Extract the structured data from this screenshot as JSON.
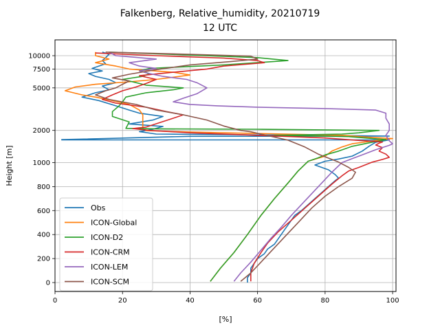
{
  "chart_data": {
    "type": "line",
    "title": "Falkenberg, Relative_humidity, 20210719",
    "subtitle": "12 UTC",
    "xlabel": "[%]",
    "ylabel": "Height [m]",
    "xlim": [
      0,
      101
    ],
    "x_ticks": [
      "0",
      "20",
      "40",
      "60",
      "80",
      "100"
    ],
    "x_tick_values": [
      0,
      20,
      40,
      60,
      80,
      100
    ],
    "y_ticks": [
      "0",
      "200",
      "400",
      "600",
      "800",
      "1000",
      "2000",
      "5000",
      "7500",
      "10000"
    ],
    "y_tick_values": [
      0,
      200,
      400,
      600,
      800,
      1000,
      2000,
      5000,
      7500,
      10000
    ],
    "grid": true,
    "legend_position": "lower-left",
    "series": [
      {
        "name": "Obs",
        "color": "#1f77b4",
        "points": [
          [
            57,
            0
          ],
          [
            57,
            40
          ],
          [
            58,
            80
          ],
          [
            58,
            120
          ],
          [
            59,
            160
          ],
          [
            60,
            200
          ],
          [
            62,
            240
          ],
          [
            63,
            280
          ],
          [
            65,
            320
          ],
          [
            66,
            360
          ],
          [
            67,
            400
          ],
          [
            68,
            440
          ],
          [
            69,
            480
          ],
          [
            70,
            520
          ],
          [
            71,
            560
          ],
          [
            73,
            600
          ],
          [
            75,
            650
          ],
          [
            77,
            700
          ],
          [
            79,
            750
          ],
          [
            81,
            800
          ],
          [
            83,
            850
          ],
          [
            84,
            870
          ],
          [
            83,
            900
          ],
          [
            81,
            940
          ],
          [
            77,
            980
          ],
          [
            80,
            1030
          ],
          [
            84,
            1080
          ],
          [
            88,
            1150
          ],
          [
            91,
            1280
          ],
          [
            93,
            1420
          ],
          [
            95,
            1550
          ],
          [
            99,
            1630
          ],
          [
            2,
            1630
          ],
          [
            2,
            1640
          ],
          [
            40,
            1760
          ],
          [
            99,
            1770
          ],
          [
            30,
            1850
          ],
          [
            25,
            1950
          ],
          [
            29,
            2050
          ],
          [
            32,
            2180
          ],
          [
            22,
            2300
          ],
          [
            29,
            2500
          ],
          [
            32,
            2700
          ],
          [
            25,
            2900
          ],
          [
            22,
            3100
          ],
          [
            18,
            3400
          ],
          [
            13,
            3800
          ],
          [
            8,
            4100
          ],
          [
            12,
            4500
          ],
          [
            16,
            4800
          ],
          [
            14,
            5200
          ],
          [
            18,
            5600
          ],
          [
            16,
            6000
          ],
          [
            12,
            6400
          ],
          [
            10,
            6800
          ],
          [
            14,
            7200
          ],
          [
            11,
            7600
          ],
          [
            13,
            8000
          ],
          [
            15,
            8400
          ],
          [
            14,
            9000
          ],
          [
            15,
            9600
          ],
          [
            16,
            10300
          ],
          [
            14,
            10800
          ]
        ]
      },
      {
        "name": "ICON-Global",
        "color": "#ff7f0e",
        "points": [
          [
            46,
            10
          ],
          [
            49,
            120
          ],
          [
            53,
            250
          ],
          [
            57,
            400
          ],
          [
            61,
            560
          ],
          [
            65,
            700
          ],
          [
            69,
            830
          ],
          [
            72,
            930
          ],
          [
            75,
            1030
          ],
          [
            80,
            1150
          ],
          [
            82,
            1280
          ],
          [
            85,
            1400
          ],
          [
            88,
            1500
          ],
          [
            92,
            1560
          ],
          [
            96,
            1620
          ],
          [
            100,
            1680
          ],
          [
            94,
            1720
          ],
          [
            85,
            1800
          ],
          [
            60,
            1870
          ],
          [
            40,
            1930
          ],
          [
            27,
            1990
          ],
          [
            26,
            2100
          ],
          [
            26,
            2400
          ],
          [
            26,
            2800
          ],
          [
            25,
            3100
          ],
          [
            22,
            3500
          ],
          [
            17,
            3800
          ],
          [
            12,
            4100
          ],
          [
            8,
            4300
          ],
          [
            3,
            4700
          ],
          [
            6,
            5100
          ],
          [
            12,
            5400
          ],
          [
            22,
            5700
          ],
          [
            30,
            6000
          ],
          [
            40,
            6600
          ],
          [
            35,
            7000
          ],
          [
            22,
            7500
          ],
          [
            18,
            8000
          ],
          [
            12,
            8600
          ],
          [
            16,
            9300
          ],
          [
            12,
            10000
          ],
          [
            12,
            10800
          ]
        ]
      },
      {
        "name": "ICON-D2",
        "color": "#2ca02c",
        "points": [
          [
            46,
            10
          ],
          [
            49,
            120
          ],
          [
            53,
            250
          ],
          [
            57,
            400
          ],
          [
            61,
            560
          ],
          [
            65,
            700
          ],
          [
            69,
            830
          ],
          [
            72,
            930
          ],
          [
            75,
            1030
          ],
          [
            78,
            1110
          ],
          [
            80,
            1180
          ],
          [
            84,
            1280
          ],
          [
            88,
            1420
          ],
          [
            93,
            1530
          ],
          [
            98,
            1640
          ],
          [
            87,
            1750
          ],
          [
            65,
            1800
          ],
          [
            85,
            1850
          ],
          [
            90,
            1900
          ],
          [
            93,
            1950
          ],
          [
            96,
            2000
          ],
          [
            60,
            2050
          ],
          [
            30,
            2070
          ],
          [
            21,
            2090
          ],
          [
            22,
            2400
          ],
          [
            17,
            2700
          ],
          [
            17,
            3000
          ],
          [
            19,
            3400
          ],
          [
            20,
            3700
          ],
          [
            21,
            4100
          ],
          [
            27,
            4500
          ],
          [
            35,
            4800
          ],
          [
            38,
            5000
          ],
          [
            27,
            5300
          ],
          [
            24,
            5600
          ],
          [
            20,
            6000
          ],
          [
            26,
            6400
          ],
          [
            28,
            6800
          ],
          [
            25,
            7200
          ],
          [
            28,
            7600
          ],
          [
            50,
            8200
          ],
          [
            69,
            9000
          ],
          [
            60,
            9600
          ],
          [
            38,
            10200
          ],
          [
            16,
            10800
          ]
        ]
      },
      {
        "name": "ICON-CRM",
        "color": "#d62728",
        "points": [
          [
            58,
            10
          ],
          [
            58,
            80
          ],
          [
            59,
            160
          ],
          [
            61,
            250
          ],
          [
            63,
            330
          ],
          [
            66,
            420
          ],
          [
            70,
            520
          ],
          [
            74,
            620
          ],
          [
            78,
            720
          ],
          [
            82,
            820
          ],
          [
            85,
            890
          ],
          [
            87,
            930
          ],
          [
            90,
            960
          ],
          [
            94,
            1010
          ],
          [
            97,
            1070
          ],
          [
            99,
            1120
          ],
          [
            98,
            1200
          ],
          [
            96,
            1280
          ],
          [
            97,
            1380
          ],
          [
            95,
            1460
          ],
          [
            96,
            1520
          ],
          [
            97,
            1560
          ],
          [
            89,
            1620
          ],
          [
            80,
            1700
          ],
          [
            60,
            1800
          ],
          [
            40,
            1900
          ],
          [
            28,
            2000
          ],
          [
            23,
            2080
          ],
          [
            27,
            2150
          ],
          [
            35,
            2600
          ],
          [
            38,
            2800
          ],
          [
            33,
            3000
          ],
          [
            27,
            3300
          ],
          [
            18,
            3600
          ],
          [
            14,
            3900
          ],
          [
            17,
            4300
          ],
          [
            20,
            4700
          ],
          [
            24,
            5100
          ],
          [
            27,
            5500
          ],
          [
            30,
            6000
          ],
          [
            25,
            6500
          ],
          [
            35,
            7000
          ],
          [
            45,
            7500
          ],
          [
            50,
            8000
          ],
          [
            62,
            8600
          ],
          [
            60,
            9000
          ],
          [
            50,
            9500
          ],
          [
            30,
            10000
          ],
          [
            12,
            10600
          ]
        ]
      },
      {
        "name": "ICON-LEM",
        "color": "#9467bd",
        "points": [
          [
            53,
            10
          ],
          [
            55,
            80
          ],
          [
            58,
            170
          ],
          [
            61,
            270
          ],
          [
            64,
            370
          ],
          [
            67,
            460
          ],
          [
            70,
            560
          ],
          [
            73,
            650
          ],
          [
            76,
            740
          ],
          [
            79,
            830
          ],
          [
            82,
            920
          ],
          [
            85,
            1000
          ],
          [
            88,
            1090
          ],
          [
            91,
            1180
          ],
          [
            95,
            1320
          ],
          [
            99,
            1450
          ],
          [
            100,
            1500
          ],
          [
            99,
            1600
          ],
          [
            98,
            1800
          ],
          [
            99,
            2000
          ],
          [
            99,
            2300
          ],
          [
            98,
            2600
          ],
          [
            98,
            2900
          ],
          [
            95,
            3100
          ],
          [
            80,
            3200
          ],
          [
            60,
            3300
          ],
          [
            48,
            3400
          ],
          [
            40,
            3500
          ],
          [
            35,
            3700
          ],
          [
            38,
            4000
          ],
          [
            42,
            4400
          ],
          [
            45,
            5000
          ],
          [
            42,
            5600
          ],
          [
            39,
            6000
          ],
          [
            32,
            6400
          ],
          [
            28,
            6800
          ],
          [
            25,
            7200
          ],
          [
            30,
            7600
          ],
          [
            25,
            8000
          ],
          [
            22,
            8600
          ],
          [
            30,
            9300
          ],
          [
            18,
            10000
          ],
          [
            16,
            10800
          ]
        ]
      },
      {
        "name": "ICON-SCM",
        "color": "#8c564b",
        "points": [
          [
            55,
            10
          ],
          [
            58,
            80
          ],
          [
            61,
            170
          ],
          [
            64,
            260
          ],
          [
            68,
            380
          ],
          [
            72,
            500
          ],
          [
            76,
            620
          ],
          [
            80,
            720
          ],
          [
            84,
            800
          ],
          [
            88,
            870
          ],
          [
            89,
            920
          ],
          [
            87,
            960
          ],
          [
            84,
            1010
          ],
          [
            82,
            1070
          ],
          [
            78,
            1200
          ],
          [
            74,
            1400
          ],
          [
            69,
            1620
          ],
          [
            63,
            1790
          ],
          [
            58,
            1940
          ],
          [
            55,
            2000
          ],
          [
            50,
            2200
          ],
          [
            45,
            2500
          ],
          [
            38,
            2800
          ],
          [
            30,
            3100
          ],
          [
            24,
            3500
          ],
          [
            16,
            3900
          ],
          [
            12,
            4300
          ],
          [
            15,
            4700
          ],
          [
            18,
            5000
          ],
          [
            20,
            5400
          ],
          [
            22,
            5800
          ],
          [
            17,
            6200
          ],
          [
            22,
            6700
          ],
          [
            30,
            7400
          ],
          [
            40,
            8200
          ],
          [
            52,
            8800
          ],
          [
            60,
            9300
          ],
          [
            58,
            9900
          ],
          [
            40,
            10300
          ],
          [
            15,
            10800
          ]
        ]
      }
    ]
  }
}
